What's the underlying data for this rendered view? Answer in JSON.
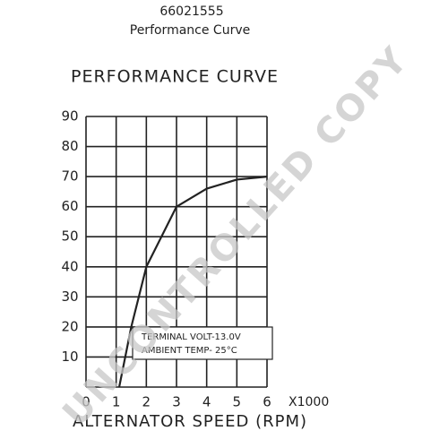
{
  "header": {
    "part_number": "66021555",
    "subtitle": "Performance Curve"
  },
  "chart_data": {
    "type": "line",
    "title": "PERFORMANCE CURVE",
    "x_label": "ALTERNATOR SPEED (RPM)",
    "x_unit": "X1000",
    "annotations": [
      "TERMINAL VOLT-13.0V",
      "AMBIENT TEMP- 25°C"
    ],
    "watermark": "UNCONTROLLED COPY",
    "series": [
      {
        "color": "#222222",
        "x": [
          1.1,
          1.5,
          2,
          3,
          4,
          5,
          6
        ],
        "values": [
          0,
          20,
          40,
          60,
          66,
          69,
          70
        ]
      }
    ],
    "xlim": [
      0,
      6
    ],
    "ylim": [
      0,
      90
    ],
    "xticks": [
      0,
      1,
      2,
      3,
      4,
      5,
      6
    ],
    "yticks": [
      10,
      20,
      30,
      40,
      50,
      60,
      70,
      80,
      90
    ],
    "grid": true
  }
}
